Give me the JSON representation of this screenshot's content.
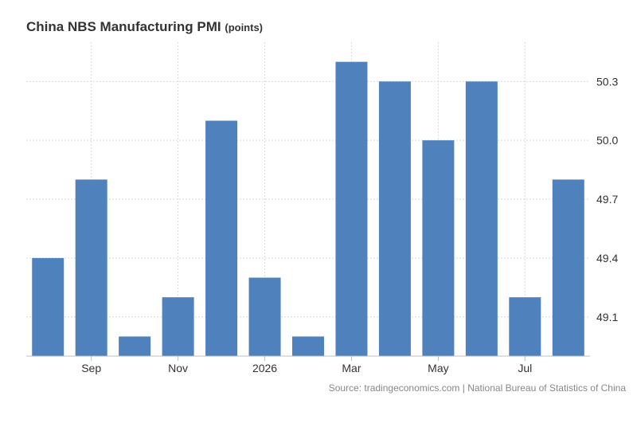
{
  "title": "China NBS Manufacturing PMI",
  "unit": "(points)",
  "source": "Source: tradingeconomics.com | National Bureau of Statistics of China",
  "colors": {
    "bar": "#4f81bd",
    "grid": "#d9d9d9",
    "axis": "#bfbfbf",
    "text": "#333333"
  },
  "chart_data": {
    "type": "bar",
    "series": [
      {
        "values": [
          49.4,
          49.8,
          49.0,
          49.2,
          50.1,
          49.3,
          49.0,
          50.4,
          50.3,
          50.0,
          50.3,
          49.2,
          49.8
        ]
      }
    ],
    "x_tick_labels": [
      {
        "index": 1,
        "label": "Sep"
      },
      {
        "index": 3,
        "label": "Nov"
      },
      {
        "index": 5,
        "label": "2026"
      },
      {
        "index": 7,
        "label": "Mar"
      },
      {
        "index": 9,
        "label": "May"
      },
      {
        "index": 11,
        "label": "Jul"
      }
    ],
    "y_ticks": [
      49.1,
      49.4,
      49.7,
      50.0,
      50.3
    ],
    "ylim": [
      48.9,
      50.5
    ],
    "y_axis_position": "right",
    "grid": true,
    "legend": "none"
  }
}
